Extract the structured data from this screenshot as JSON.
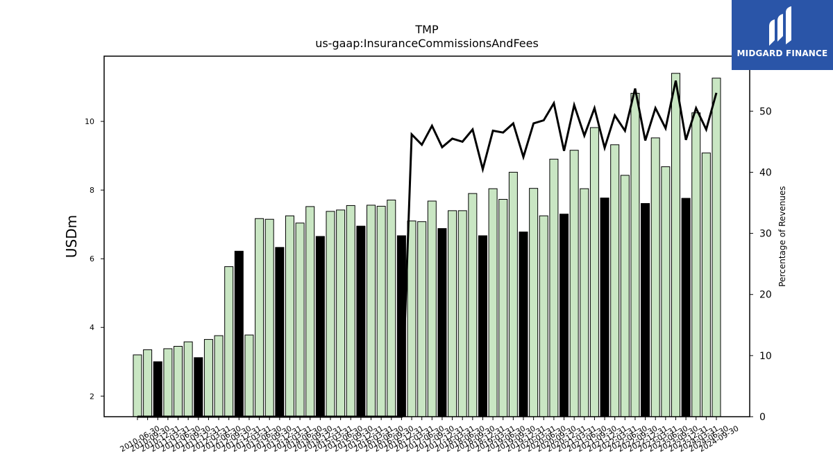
{
  "chart_data": {
    "type": "bar",
    "title": "TMP",
    "subtitle": "us-gaap:InsuranceCommissionsAndFees",
    "ylabel": "USDm",
    "ylabel_right": "Percentage of Revenues",
    "ylim": [
      1.4,
      11.9
    ],
    "ylim_right": [
      0,
      59
    ],
    "yticks": [
      2,
      4,
      6,
      8,
      10
    ],
    "yticks_right": [
      0,
      10,
      20,
      30,
      40,
      50
    ],
    "grid": false,
    "legend": "none",
    "colors": {
      "bar_light": "#c9e6c3",
      "bar_dark": "#000000",
      "line": "#000000"
    },
    "categories": [
      "2010-06-30",
      "2010-09-30",
      "2010-12-31",
      "2011-03-31",
      "2011-06-30",
      "2011-09-30",
      "2011-12-31",
      "2012-03-31",
      "2012-06-30",
      "2012-09-30",
      "2012-12-31",
      "2013-03-31",
      "2013-06-30",
      "2013-09-30",
      "2013-12-31",
      "2014-03-31",
      "2014-06-30",
      "2014-09-30",
      "2014-12-31",
      "2015-03-31",
      "2015-06-30",
      "2015-09-30",
      "2015-12-31",
      "2016-03-31",
      "2016-06-30",
      "2016-09-30",
      "2016-12-31",
      "2017-03-31",
      "2017-06-30",
      "2017-09-30",
      "2017-12-31",
      "2018-03-31",
      "2018-06-30",
      "2018-09-30",
      "2018-12-31",
      "2019-03-31",
      "2019-06-30",
      "2019-09-30",
      "2019-12-31",
      "2020-03-31",
      "2020-06-30",
      "2020-09-30",
      "2020-12-31",
      "2021-03-31",
      "2021-06-30",
      "2021-09-30",
      "2021-12-31",
      "2022-03-31",
      "2022-06-30",
      "2022-09-30",
      "2022-12-31",
      "2023-03-31",
      "2023-06-30",
      "2023-09-30",
      "2023-12-31",
      "2024-03-31",
      "2024-06-30",
      "2024-09-30"
    ],
    "series": [
      {
        "kind": "bar",
        "values": [
          3.2,
          3.35,
          3.0,
          3.38,
          3.45,
          3.58,
          3.12,
          3.65,
          3.76,
          5.77,
          6.22,
          3.78,
          7.17,
          7.15,
          6.33,
          7.25,
          7.04,
          7.52,
          6.65,
          7.38,
          7.42,
          7.55,
          6.95,
          7.56,
          7.53,
          7.71,
          6.67,
          7.1,
          7.08,
          7.68,
          6.88,
          7.4,
          7.4,
          7.9,
          6.67,
          8.04,
          7.73,
          8.52,
          6.78,
          8.05,
          7.25,
          8.9,
          7.3,
          9.16,
          8.04,
          9.82,
          7.77,
          9.32,
          8.43,
          10.82,
          7.61,
          9.52,
          8.68,
          11.4,
          7.76,
          10.25,
          9.08,
          11.26
        ],
        "dark_flags": [
          0,
          0,
          1,
          0,
          0,
          0,
          1,
          0,
          0,
          0,
          1,
          0,
          0,
          0,
          1,
          0,
          0,
          0,
          1,
          0,
          0,
          0,
          1,
          0,
          0,
          0,
          1,
          0,
          0,
          0,
          1,
          0,
          0,
          0,
          1,
          0,
          0,
          0,
          1,
          0,
          0,
          0,
          1,
          0,
          0,
          0,
          1,
          0,
          0,
          0,
          1,
          0,
          0,
          0,
          1,
          0,
          0,
          0
        ]
      },
      {
        "kind": "line",
        "axis": "right",
        "values": [
          0,
          0,
          0,
          0,
          0,
          0,
          0,
          0,
          0,
          0,
          0,
          0,
          0,
          0,
          0,
          0,
          0,
          0,
          0,
          0,
          0,
          0,
          0,
          0,
          0,
          0,
          0,
          46.2,
          44.5,
          47.6,
          44.1,
          45.5,
          45.0,
          47.0,
          40.5,
          46.8,
          46.5,
          48.0,
          42.5,
          48.0,
          48.5,
          51.3,
          43.5,
          51.0,
          46.0,
          50.5,
          44.0,
          49.3,
          46.8,
          53.7,
          45.2,
          50.5,
          47.2,
          55.0,
          45.3,
          50.5,
          47.0,
          53.0
        ]
      }
    ]
  },
  "logo": {
    "name": "MIDGARD FINANCE"
  }
}
